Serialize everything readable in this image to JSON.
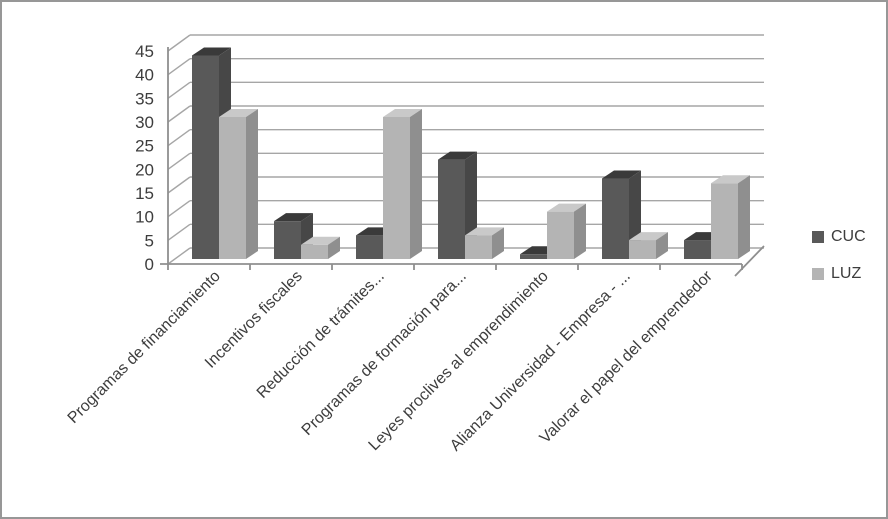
{
  "chart_data": {
    "type": "bar",
    "style": "3d-clustered-column",
    "title": "",
    "categories": [
      "Programas de financiamiento",
      "Incentivos fiscales",
      "Reducción de trámites...",
      "Programas de formación para...",
      "Leyes proclives al emprendimiento",
      "Alianza Universidad - Empresa - ...",
      "Valorar el papel del emprendedor"
    ],
    "series": [
      {
        "name": "CUC",
        "values": [
          43,
          8,
          5,
          21,
          1,
          17,
          4
        ],
        "colors": {
          "front": "#595959",
          "top": "#3a3a3a",
          "side": "#474747"
        }
      },
      {
        "name": "LUZ",
        "values": [
          30,
          3,
          30,
          5,
          10,
          4,
          16
        ],
        "colors": {
          "front": "#b4b4b4",
          "top": "#c9c9c9",
          "side": "#8f8f8f"
        }
      }
    ],
    "y_axis": {
      "min": 0,
      "max": 45,
      "step": 5,
      "tick_labels": [
        "0",
        "5",
        "10",
        "15",
        "20",
        "25",
        "30",
        "35",
        "40",
        "45"
      ]
    },
    "x_axis": {
      "label_rotation_deg": -45
    },
    "legend": {
      "position": "right",
      "entries": [
        "CUC",
        "LUZ"
      ]
    },
    "grid": true,
    "colors": {
      "gridline": "#a6a6a6",
      "axis": "#8f8f8f",
      "text": "#3d3d3d",
      "background": "#ffffff",
      "border": "#979797"
    }
  }
}
